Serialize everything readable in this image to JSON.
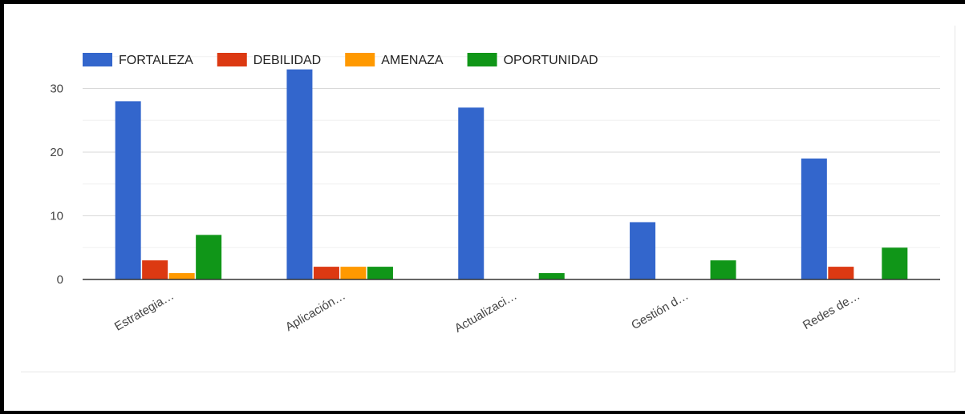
{
  "chart_data": {
    "type": "bar",
    "categories": [
      "Estrategia…",
      "Aplicación…",
      "Actualizaci…",
      "Gestión d…",
      "Redes de…"
    ],
    "series": [
      {
        "name": "FORTALEZA",
        "color": "#3366cc",
        "values": [
          28,
          33,
          27,
          9,
          19
        ]
      },
      {
        "name": "DEBILIDAD",
        "color": "#dc3912",
        "values": [
          3,
          2,
          0,
          0,
          2
        ]
      },
      {
        "name": "AMENAZA",
        "color": "#ff9900",
        "values": [
          1,
          2,
          0,
          0,
          0
        ]
      },
      {
        "name": "OPORTUNIDAD",
        "color": "#109618",
        "values": [
          7,
          2,
          1,
          3,
          5
        ]
      }
    ],
    "yticks": [
      0,
      10,
      20,
      30
    ],
    "ylim": [
      0,
      35
    ],
    "grid": true,
    "legend_position": "top-left"
  }
}
